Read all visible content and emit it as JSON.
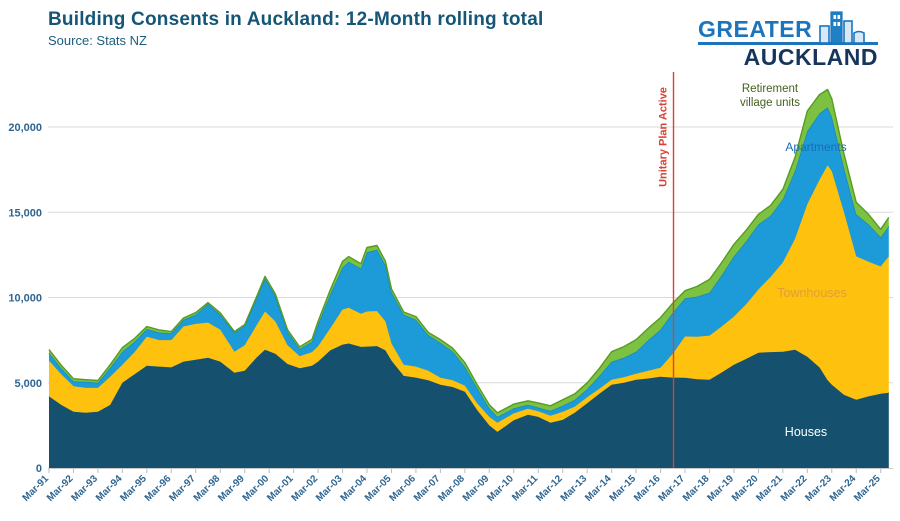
{
  "header": {
    "title": "Building Consents in Auckland: 12-Month rolling total",
    "subtitle": "Source: Stats NZ"
  },
  "logo": {
    "line1": "GREATER",
    "line2": "AUCKLAND",
    "icon": "city-buildings-icon",
    "color_primary": "#1c75bc",
    "color_secondary": "#16355d"
  },
  "chart_data": {
    "type": "area",
    "stacked": true,
    "title": "Building Consents in Auckland: 12-Month rolling total",
    "subtitle": "Source: Stats NZ",
    "xlabel": "",
    "ylabel": "",
    "grid": "horizontal-light-gray",
    "legend_position": "labels-on-areas",
    "xlim_years": [
      1991.17,
      2025.55
    ],
    "ylim": [
      0,
      22500
    ],
    "y_ticks": [
      0,
      5000,
      10000,
      15000,
      20000
    ],
    "y_tick_labels": [
      "0",
      "5,000",
      "10,000",
      "15,000",
      "20,000"
    ],
    "x_tick_labels": [
      "Mar-91",
      "Mar-92",
      "Mar-93",
      "Mar-94",
      "Mar-95",
      "Mar-96",
      "Mar-97",
      "Mar-98",
      "Mar-99",
      "Mar-00",
      "Mar-01",
      "Mar-02",
      "Mar-03",
      "Mar-04",
      "Mar-05",
      "Mar-06",
      "Mar-07",
      "Mar-08",
      "Mar-09",
      "Mar-10",
      "Mar-11",
      "Mar-12",
      "Mar-13",
      "Mar-14",
      "Mar-15",
      "Mar-16",
      "Mar-17",
      "Mar-18",
      "Mar-19",
      "Mar-20",
      "Mar-21",
      "Mar-22",
      "Mar-23",
      "Mar-24",
      "Mar-25"
    ],
    "x_tick_start_year": 1991.17,
    "axis_text_color": "#2f6590",
    "gridline_color": "#d9d9d9",
    "x_years": [
      1991.17,
      1991.67,
      1992.17,
      1992.67,
      1993.17,
      1993.67,
      1994.17,
      1994.67,
      1995.17,
      1995.67,
      1996.17,
      1996.67,
      1997.17,
      1997.67,
      1998.17,
      1998.75,
      1999.17,
      1999.67,
      2000.0,
      2000.42,
      2000.92,
      2001.42,
      2001.92,
      2002.17,
      2002.67,
      2003.17,
      2003.42,
      2003.92,
      2004.17,
      2004.58,
      2004.92,
      2005.17,
      2005.67,
      2006.17,
      2006.67,
      2007.17,
      2007.67,
      2008.17,
      2008.67,
      2009.17,
      2009.5,
      2010.17,
      2010.75,
      2011.17,
      2011.67,
      2012.17,
      2012.67,
      2013.17,
      2013.67,
      2014.17,
      2014.67,
      2015.17,
      2015.67,
      2016.17,
      2016.67,
      2017.17,
      2017.67,
      2018.17,
      2018.67,
      2019.17,
      2019.67,
      2020.17,
      2020.67,
      2021.17,
      2021.67,
      2022.17,
      2022.67,
      2023.0,
      2023.17,
      2023.67,
      2024.17,
      2024.67,
      2025.17,
      2025.5
    ],
    "series_order_bottom_to_top": [
      "Houses",
      "Townhouses",
      "Apartments",
      "Retirement village units"
    ],
    "series": [
      {
        "name": "Houses",
        "color": "#15506f",
        "edge_color": "#15506f",
        "values": [
          4200,
          3700,
          3300,
          3240,
          3300,
          3700,
          5000,
          5500,
          6000,
          5950,
          5900,
          6240,
          6350,
          6470,
          6240,
          5590,
          5700,
          6500,
          6940,
          6700,
          6100,
          5850,
          6000,
          6240,
          6900,
          7240,
          7300,
          7100,
          7120,
          7150,
          6900,
          6300,
          5400,
          5300,
          5150,
          4880,
          4750,
          4470,
          3400,
          2500,
          2120,
          2800,
          3120,
          3000,
          2650,
          2820,
          3250,
          3800,
          4350,
          4880,
          5000,
          5180,
          5250,
          5350,
          5300,
          5290,
          5200,
          5180,
          5600,
          6060,
          6400,
          6760,
          6800,
          6820,
          6940,
          6530,
          5900,
          5150,
          4880,
          4290,
          4000,
          4200,
          4350,
          4410
        ]
      },
      {
        "name": "Townhouses",
        "color": "#fec10d",
        "edge_color": "#fec10d",
        "values": [
          2100,
          1800,
          1500,
          1460,
          1400,
          1650,
          1060,
          1300,
          1700,
          1550,
          1600,
          2060,
          2100,
          2060,
          1880,
          1230,
          1500,
          1900,
          2240,
          1900,
          1100,
          700,
          800,
          900,
          1300,
          2050,
          2100,
          1950,
          2060,
          2050,
          1700,
          1000,
          650,
          650,
          550,
          410,
          400,
          350,
          400,
          500,
          530,
          400,
          350,
          330,
          410,
          470,
          350,
          350,
          300,
          300,
          320,
          350,
          450,
          530,
          1400,
          2420,
          2500,
          2585,
          2700,
          2820,
          3200,
          3710,
          4400,
          5240,
          6500,
          8940,
          11000,
          12600,
          12530,
          10700,
          8410,
          7900,
          7470,
          8000
        ]
      },
      {
        "name": "Apartments",
        "color": "#1d9bd8",
        "edge_color": "#1386c0",
        "values": [
          450,
          350,
          280,
          360,
          300,
          530,
          760,
          600,
          450,
          450,
          400,
          400,
          550,
          1100,
          880,
          1120,
          1150,
          1600,
          1950,
          1500,
          800,
          430,
          600,
          1280,
          2000,
          2470,
          2700,
          2650,
          3470,
          3600,
          3300,
          3000,
          2950,
          2750,
          2100,
          2060,
          1700,
          1120,
          900,
          500,
          350,
          300,
          240,
          220,
          290,
          360,
          400,
          480,
          750,
          1060,
          1150,
          1290,
          1800,
          2240,
          2400,
          2240,
          2350,
          2525,
          3000,
          3530,
          3700,
          3820,
          3600,
          3700,
          4000,
          4290,
          3900,
          3400,
          3180,
          2600,
          2470,
          2200,
          1710,
          1770
        ]
      },
      {
        "name": "Retirement village units",
        "color": "#7cc142",
        "edge_color": "#579b22",
        "values": [
          200,
          180,
          160,
          120,
          130,
          180,
          240,
          200,
          150,
          150,
          100,
          100,
          120,
          70,
          100,
          60,
          60,
          90,
          110,
          110,
          120,
          120,
          150,
          180,
          250,
          360,
          300,
          280,
          290,
          250,
          230,
          200,
          150,
          180,
          160,
          180,
          180,
          240,
          200,
          210,
          240,
          250,
          230,
          270,
          300,
          350,
          350,
          370,
          450,
          580,
          650,
          710,
          700,
          700,
          570,
          450,
          600,
          770,
          750,
          710,
          650,
          590,
          600,
          590,
          800,
          1180,
          1100,
          1050,
          1060,
          820,
          710,
          580,
          470,
          520
        ]
      }
    ],
    "annotations": {
      "vline": {
        "x_year": 2016.7,
        "label": "Unitary Plan Active",
        "color": "#d94136"
      },
      "series_labels": [
        {
          "name": "retirement-village-units-label",
          "lines": [
            "Retirement",
            "village units"
          ],
          "x": 770,
          "y": 92,
          "line_height": 14,
          "color": "#43611d",
          "size": 11.5
        },
        {
          "name": "apartments-label",
          "lines": [
            "Apartments"
          ],
          "x": 816,
          "y": 151,
          "line_height": 14,
          "color": "#1a6db3",
          "size": 12
        },
        {
          "name": "townhouses-label",
          "lines": [
            "Townhouses"
          ],
          "x": 812,
          "y": 297,
          "line_height": 14,
          "color": "#dfa037",
          "size": 12.5
        },
        {
          "name": "houses-label",
          "lines": [
            "Houses"
          ],
          "x": 806,
          "y": 436,
          "line_height": 14,
          "color": "#ffffff",
          "size": 12.5
        }
      ]
    }
  }
}
